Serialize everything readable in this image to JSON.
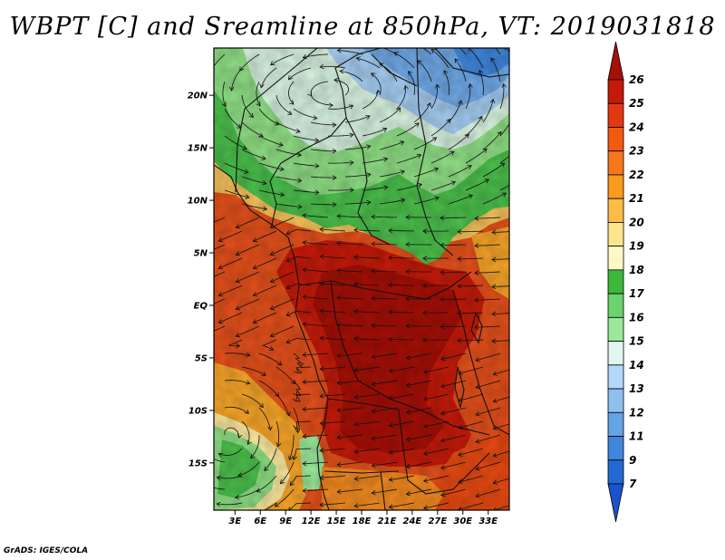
{
  "title": "WBPT [C] and Sreamline at 850hPa, VT: 2019031818",
  "credit": "GrADS: IGES/COLA",
  "map": {
    "lat_ticks": [
      {
        "label": "20N",
        "value": 20
      },
      {
        "label": "15N",
        "value": 15
      },
      {
        "label": "10N",
        "value": 10
      },
      {
        "label": "5N",
        "value": 5
      },
      {
        "label": "EQ",
        "value": 0
      },
      {
        "label": "5S",
        "value": -5
      },
      {
        "label": "10S",
        "value": -10
      },
      {
        "label": "15S",
        "value": -15
      }
    ],
    "lon_ticks": [
      {
        "label": "3E",
        "value": 3
      },
      {
        "label": "6E",
        "value": 6
      },
      {
        "label": "9E",
        "value": 9
      },
      {
        "label": "12E",
        "value": 12
      },
      {
        "label": "15E",
        "value": 15
      },
      {
        "label": "18E",
        "value": 18
      },
      {
        "label": "21E",
        "value": 21
      },
      {
        "label": "24E",
        "value": 24
      },
      {
        "label": "27E",
        "value": 27
      },
      {
        "label": "30E",
        "value": 30
      },
      {
        "label": "33E",
        "value": 33
      }
    ],
    "lat_range": [
      -19.5,
      24.5
    ],
    "lon_range": [
      0.5,
      35.5
    ]
  },
  "colorbar": {
    "labels": [
      "26",
      "25",
      "24",
      "23",
      "22",
      "21",
      "20",
      "19",
      "18",
      "17",
      "16",
      "15",
      "14",
      "13",
      "12",
      "11",
      "9",
      "7"
    ],
    "colors": [
      "#a50f06",
      "#c41a09",
      "#e33714",
      "#f25a11",
      "#f5781c",
      "#fb9a1d",
      "#fbbd45",
      "#fde58e",
      "#fef8c6",
      "#3bb83b",
      "#6cd26c",
      "#9ae89a",
      "#dff7f0",
      "#b4d8f7",
      "#8ec0ef",
      "#63a3e6",
      "#3f86dc",
      "#226ad2",
      "#1a54cc"
    ]
  }
}
